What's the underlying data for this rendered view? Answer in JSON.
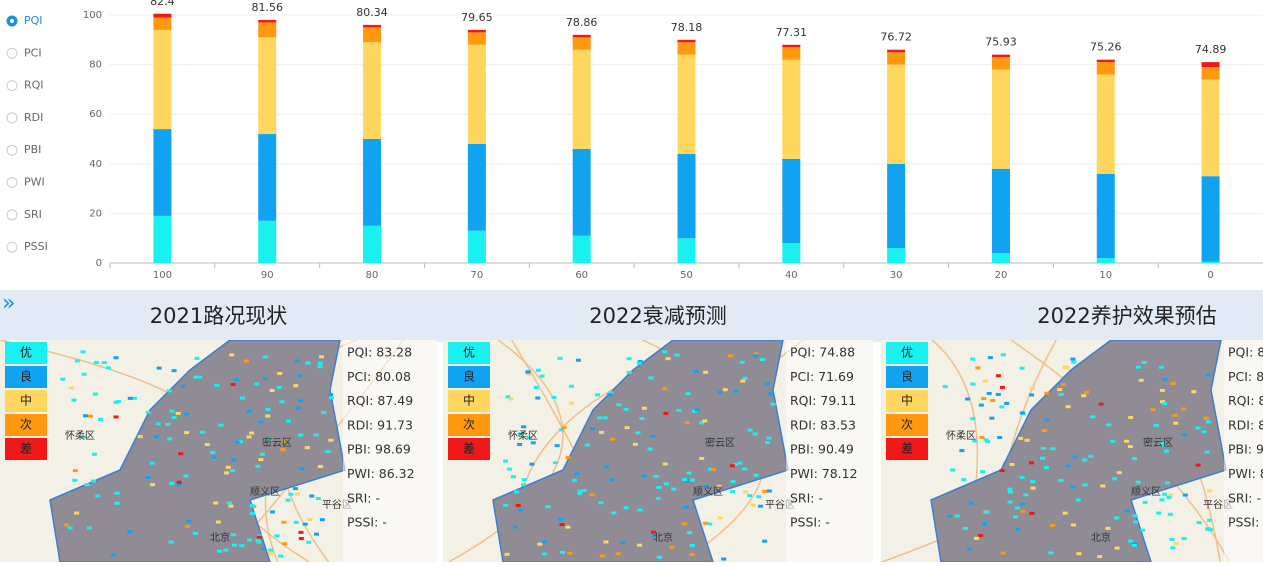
{
  "radio": {
    "options": [
      "PQI",
      "PCI",
      "RQI",
      "RDI",
      "PBI",
      "PWI",
      "SRI",
      "PSSI"
    ],
    "selected": 0
  },
  "chart_data": {
    "type": "stacked-bar",
    "categories": [
      "100",
      "90",
      "80",
      "70",
      "60",
      "50",
      "40",
      "30",
      "20",
      "10",
      "0"
    ],
    "series": [
      {
        "color": "#19f0f0",
        "values": [
          19,
          17,
          15,
          13,
          11,
          10,
          8,
          6,
          4,
          2,
          0.5
        ]
      },
      {
        "color": "#12a3f0",
        "values": [
          35,
          35,
          35,
          35,
          35,
          34,
          34,
          34,
          34,
          34,
          34.5
        ]
      },
      {
        "color": "#ffd75e",
        "values": [
          40,
          39,
          39,
          40,
          40,
          40,
          40,
          40,
          40,
          40,
          39
        ]
      },
      {
        "color": "#ff9a10",
        "values": [
          5,
          6,
          6,
          5,
          5,
          5,
          5,
          5,
          5,
          5,
          5
        ]
      },
      {
        "color": "#f01818",
        "values": [
          1.5,
          1,
          1,
          1,
          1,
          1,
          1,
          1,
          1,
          1,
          2
        ]
      }
    ],
    "top_labels": [
      82.4,
      81.56,
      80.34,
      79.65,
      78.86,
      78.18,
      77.31,
      76.72,
      75.93,
      75.26,
      74.89
    ],
    "ylim": [
      0,
      100
    ],
    "yticks": [
      0,
      20,
      40,
      60,
      80,
      100
    ],
    "grid": true
  },
  "legend": [
    "优",
    "良",
    "中",
    "次",
    "差"
  ],
  "panels": [
    {
      "title": "2021路况现状",
      "stats": [
        "PQI: 83.28",
        "PCI: 80.08",
        "RQI: 87.49",
        "RDI: 91.73",
        "PBI: 98.69",
        "PWI: 86.32",
        "SRI: -",
        "PSSI: -"
      ]
    },
    {
      "title": "2022衰减预测",
      "stats": [
        "PQI: 74.88",
        "PCI: 71.69",
        "RQI: 79.11",
        "RDI: 83.53",
        "PBI: 90.49",
        "PWI: 78.12",
        "SRI: -",
        "PSSI: -"
      ]
    },
    {
      "title": "2022养护效果预估",
      "stats": [
        "PQI: 8",
        "PCI: 8",
        "RQI: 8",
        "RDI: 8",
        "PBI: 9",
        "PWI: 8",
        "SRI: -",
        "PSSI:"
      ]
    }
  ],
  "places": [
    "怀柔区",
    "密云区",
    "顺义区",
    "平谷区",
    "北京"
  ]
}
